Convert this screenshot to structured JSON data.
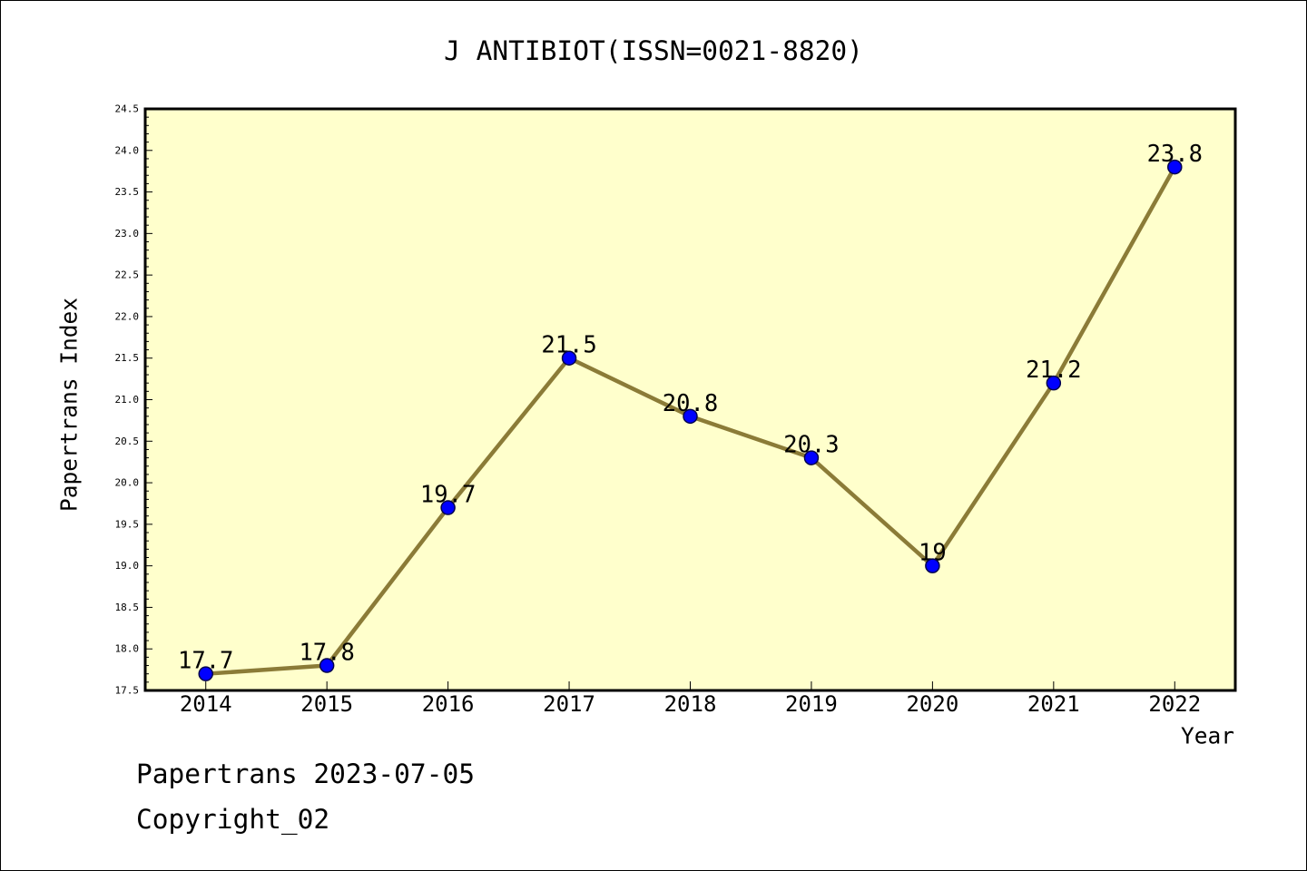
{
  "chart_data": {
    "type": "line",
    "title": "J ANTIBIOT(ISSN=0021-8820)",
    "xlabel": "Year",
    "ylabel": "Papertrans Index",
    "x": [
      2014,
      2015,
      2016,
      2017,
      2018,
      2019,
      2020,
      2021,
      2022
    ],
    "values": [
      17.7,
      17.8,
      19.7,
      21.5,
      20.8,
      20.3,
      19,
      21.2,
      23.8
    ],
    "xlim": [
      2013.5,
      2022.5
    ],
    "ylim": [
      17.5,
      24.5
    ],
    "yticks": [
      "17.5",
      "18.0",
      "18.5",
      "19.0",
      "19.5",
      "20.0",
      "20.5",
      "21.0",
      "21.5",
      "22.0",
      "22.5",
      "23.0",
      "23.5",
      "24.0",
      "24.5"
    ],
    "grid": false,
    "legend": "none",
    "data_labels": true,
    "colors": {
      "line": "#8b7b37",
      "marker": "#0000ff",
      "marker_edge": "#00004d",
      "plot_background": "#ffffcc"
    }
  },
  "footer": {
    "date_line": "Papertrans 2023-07-05",
    "copyright": "Copyright_02"
  }
}
